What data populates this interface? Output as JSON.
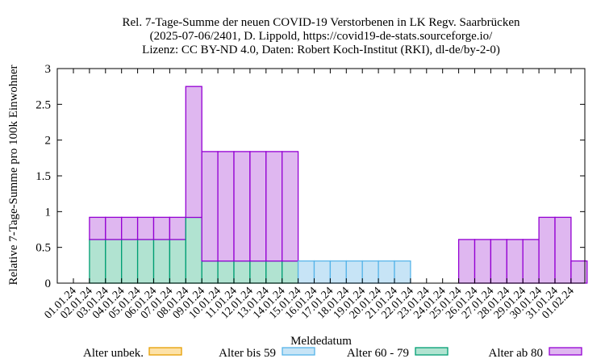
{
  "chart_data": {
    "type": "bar",
    "stacked": true,
    "title_lines": [
      "Rel. 7-Tage-Summe der neuen COVID-19 Verstorbenen in LK Regv. Saarbrücken",
      "(2025-07-06/2401, D. Lippold, https://covid19-de-stats.sourceforge.io/",
      "Lizenz: CC BY-ND 4.0, Daten: Robert Koch-Institut (RKI), dl-de/by-2-0)"
    ],
    "xlabel": "Meldedatum",
    "ylabel": "Relative 7-Tage-Summe pro 100k Einwohner",
    "ylim": [
      0,
      3
    ],
    "yticks": [
      "0",
      "0.5",
      "1",
      "1.5",
      "2",
      "2.5",
      "3"
    ],
    "grid": false,
    "legend_position": "bottom",
    "categories": [
      "01.01.24",
      "02.01.24",
      "03.01.24",
      "04.01.24",
      "05.01.24",
      "06.01.24",
      "07.01.24",
      "08.01.24",
      "09.01.24",
      "10.01.24",
      "11.01.24",
      "12.01.24",
      "13.01.24",
      "14.01.24",
      "15.01.24",
      "16.01.24",
      "17.01.24",
      "18.01.24",
      "19.01.24",
      "20.01.24",
      "21.01.24",
      "22.01.24",
      "23.01.24",
      "24.01.24",
      "25.01.24",
      "26.01.24",
      "27.01.24",
      "28.01.24",
      "29.01.24",
      "30.01.24",
      "31.01.24",
      "01.02.24"
    ],
    "series": [
      {
        "name": "Alter unbek.",
        "fill": "#fde2a8",
        "stroke": "#e69f00",
        "values": [
          0,
          0,
          0,
          0,
          0,
          0,
          0,
          0,
          0,
          0,
          0,
          0,
          0,
          0,
          0,
          0,
          0,
          0,
          0,
          0,
          0,
          0,
          0,
          0,
          0,
          0,
          0,
          0,
          0,
          0,
          0,
          0
        ]
      },
      {
        "name": "Alter bis 59",
        "fill": "#c7e4f6",
        "stroke": "#56b4e9",
        "values": [
          0,
          0,
          0,
          0,
          0,
          0,
          0,
          0,
          0,
          0,
          0,
          0,
          0,
          0,
          0.31,
          0.31,
          0.31,
          0.31,
          0.31,
          0.31,
          0.31,
          0,
          0,
          0,
          0,
          0,
          0,
          0,
          0,
          0,
          0,
          0
        ]
      },
      {
        "name": "Alter 60 - 79",
        "fill": "#b1e3d1",
        "stroke": "#009e73",
        "values": [
          0,
          0.61,
          0.61,
          0.61,
          0.61,
          0.61,
          0.61,
          0.92,
          0.31,
          0.31,
          0.31,
          0.31,
          0.31,
          0.31,
          0,
          0,
          0,
          0,
          0,
          0,
          0,
          0,
          0,
          0,
          0,
          0,
          0,
          0,
          0,
          0,
          0,
          0
        ]
      },
      {
        "name": "Alter ab 80",
        "fill": "#dfb7f0",
        "stroke": "#9400d3",
        "values": [
          0,
          0.31,
          0.31,
          0.31,
          0.31,
          0.31,
          0.31,
          1.83,
          1.53,
          1.53,
          1.53,
          1.53,
          1.53,
          1.53,
          0,
          0,
          0,
          0,
          0,
          0,
          0,
          0,
          0,
          0,
          0.61,
          0.61,
          0.61,
          0.61,
          0.61,
          0.92,
          0.92,
          0.31
        ]
      }
    ]
  }
}
